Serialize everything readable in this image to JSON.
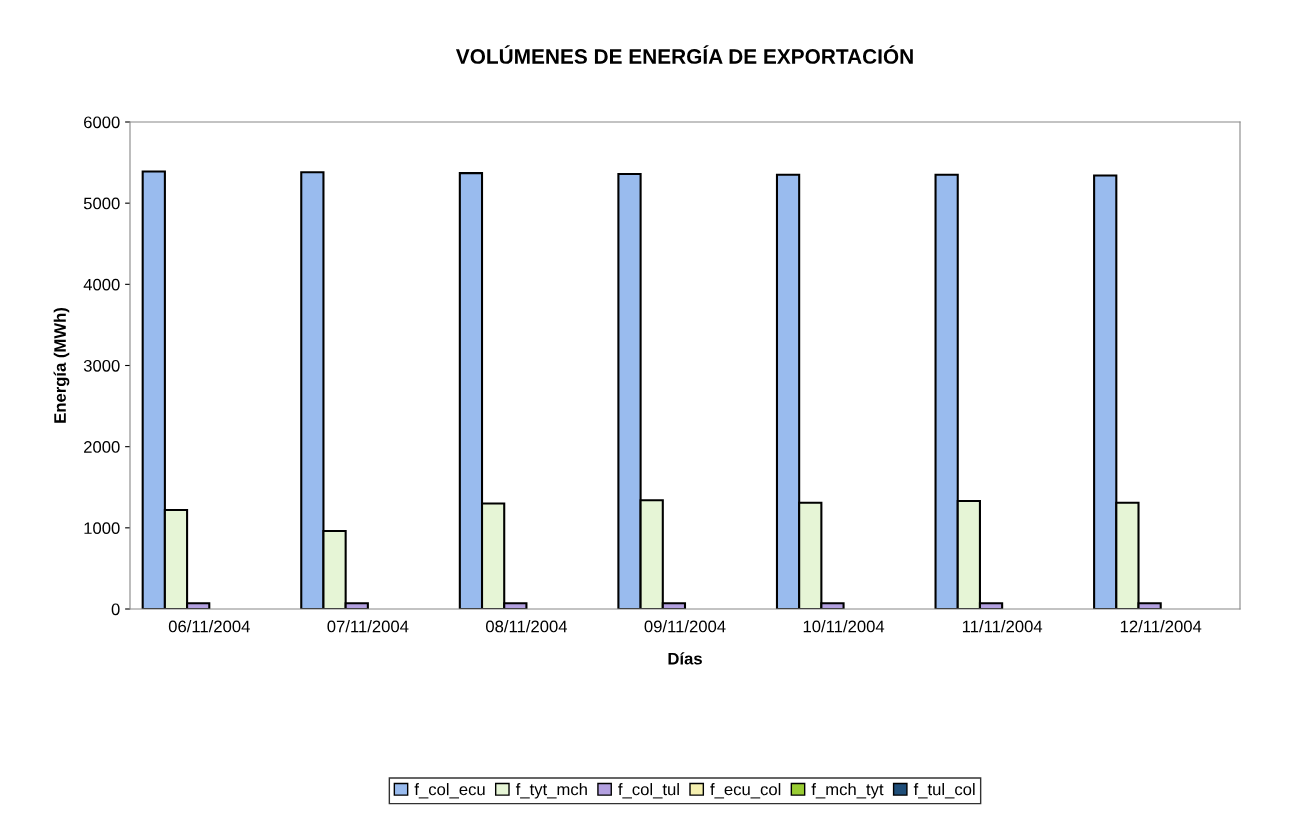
{
  "chart_data": {
    "type": "bar",
    "title": "VOLÚMENES DE ENERGÍA DE EXPORTACIÓN",
    "xlabel": "Días",
    "ylabel": "Energía (MWh)",
    "categories": [
      "06/11/2004",
      "07/11/2004",
      "08/11/2004",
      "09/11/2004",
      "10/11/2004",
      "11/11/2004",
      "12/11/2004"
    ],
    "series": [
      {
        "name": "f_col_ecu",
        "color": "#99bbee",
        "values": [
          5390,
          5380,
          5370,
          5360,
          5350,
          5350,
          5340
        ]
      },
      {
        "name": "f_tyt_mch",
        "color": "#e6f5d6",
        "values": [
          1220,
          960,
          1300,
          1340,
          1310,
          1330,
          1310
        ]
      },
      {
        "name": "f_col_tul",
        "color": "#b3a0e0",
        "values": [
          70,
          70,
          70,
          70,
          70,
          70,
          70
        ]
      },
      {
        "name": "f_ecu_col",
        "color": "#f5f0b0",
        "values": [
          0,
          0,
          0,
          0,
          0,
          0,
          0
        ]
      },
      {
        "name": "f_mch_tyt",
        "color": "#99cc33",
        "values": [
          0,
          0,
          0,
          0,
          0,
          0,
          0
        ]
      },
      {
        "name": "f_tul_col",
        "color": "#1f4e79",
        "values": [
          0,
          0,
          0,
          0,
          0,
          0,
          0
        ]
      }
    ],
    "ylim": [
      0,
      6000
    ],
    "yticks": [
      0,
      1000,
      2000,
      3000,
      4000,
      5000,
      6000
    ],
    "grid": false,
    "legend": "bottom"
  }
}
